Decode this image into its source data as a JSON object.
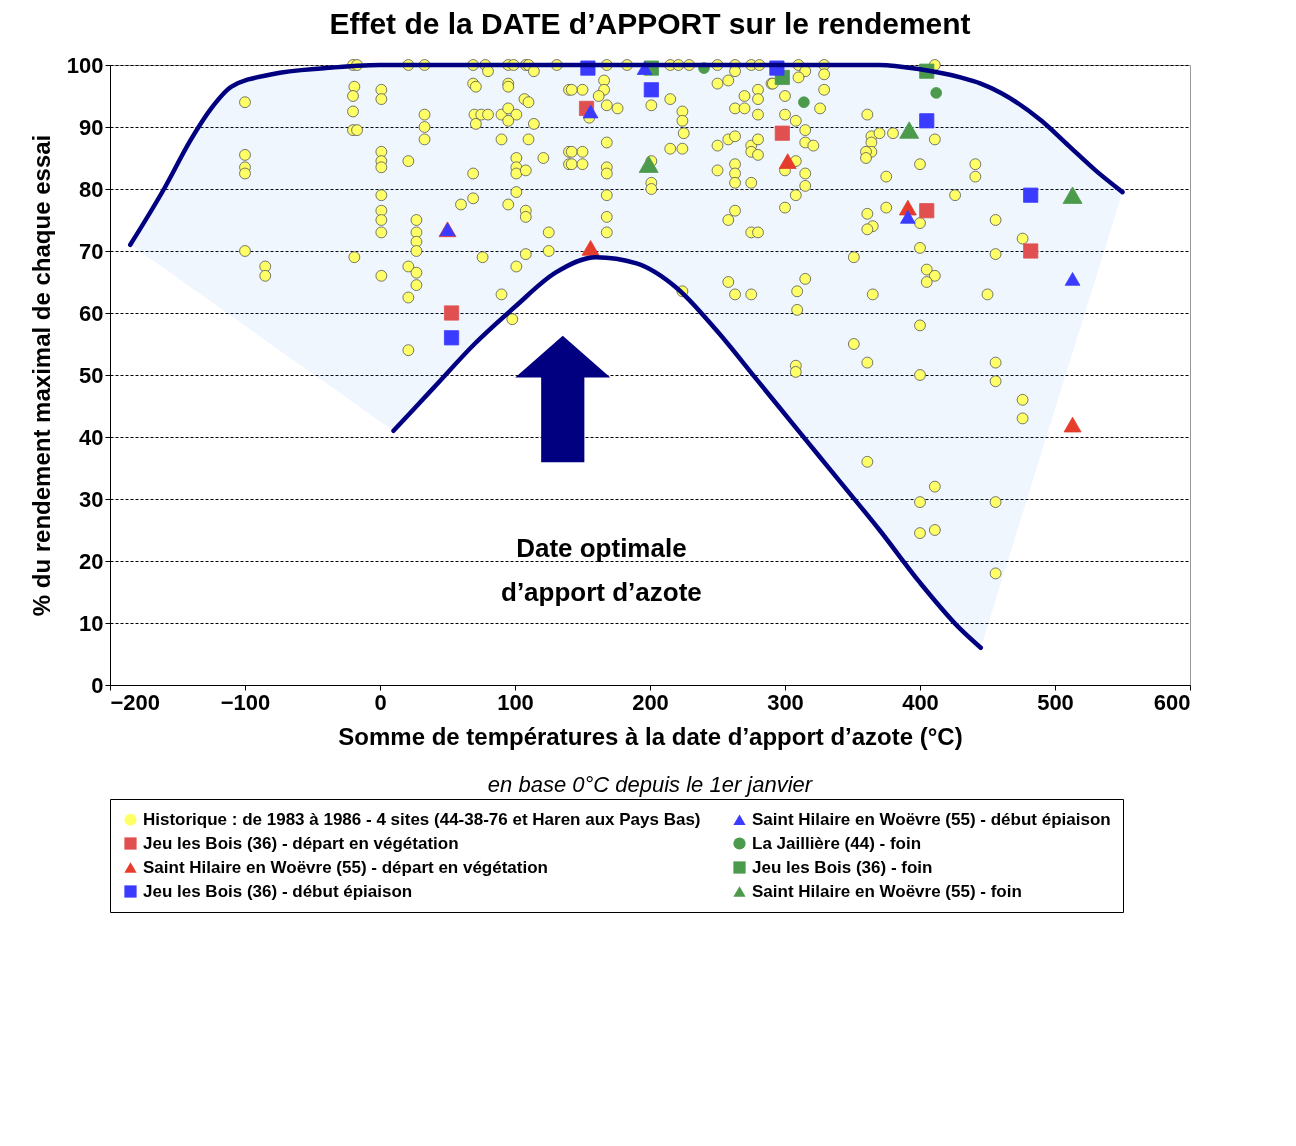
{
  "chart_data": {
    "type": "scatter",
    "title": "Effet de la DATE d’APPORT sur le rendement",
    "xlabel": "Somme de températures à la date d’apport d’azote (°C)",
    "ylabel": "% du rendement maximal de chaque essai",
    "annotations": [
      "Date optimale\nd’apport d’azote",
      "en base 0°C depuis le 1er janvier"
    ],
    "xlim": [
      -200,
      600
    ],
    "xticks": [
      -200,
      -100,
      0,
      100,
      200,
      300,
      400,
      500,
      600
    ],
    "ylim": [
      0,
      100
    ],
    "yticks": [
      0,
      10,
      20,
      30,
      40,
      50,
      60,
      70,
      80,
      90,
      100
    ],
    "grid": "y",
    "legend": "bottom",
    "series": [
      {
        "name": "Historique : de 1983 à 1986 - 4 sites (44-38-76 et Haren aux Pays Bas)",
        "color": "#ffff66",
        "marker": "circle",
        "x": [
          -100,
          -100,
          -100,
          -100,
          -100,
          -85,
          -85,
          -20,
          -17,
          -19,
          -20,
          -20,
          -20,
          -17,
          -19,
          21,
          33,
          69,
          78,
          80,
          95,
          99,
          108,
          110,
          114,
          131,
          1,
          1,
          33,
          33,
          33,
          69,
          71,
          95,
          95,
          107,
          110,
          140,
          70,
          75,
          80,
          71,
          90,
          95,
          101,
          95,
          114,
          90,
          110,
          1,
          1,
          1,
          21,
          69,
          101,
          101,
          101,
          108,
          121,
          140,
          140,
          1,
          69,
          60,
          101,
          95,
          108,
          108,
          1,
          1,
          1,
          27,
          27,
          27,
          27,
          125,
          125,
          76,
          108,
          101,
          1,
          21,
          27,
          27,
          21,
          90,
          98,
          21,
          168,
          183,
          215,
          221,
          229,
          250,
          263,
          263,
          275,
          281,
          290,
          150,
          142,
          166,
          166,
          162,
          168,
          176,
          155,
          201,
          215,
          224,
          224,
          225,
          224,
          215,
          250,
          258,
          270,
          263,
          270,
          280,
          280,
          280,
          168,
          142,
          150,
          142,
          150,
          168,
          168,
          201,
          201,
          201,
          250,
          258,
          263,
          275,
          275,
          280,
          280,
          250,
          263,
          263,
          263,
          275,
          168,
          168,
          168,
          258,
          263,
          275,
          280,
          224,
          258,
          263,
          275,
          291,
          310,
          315,
          310,
          329,
          329,
          329,
          300,
          300,
          308,
          326,
          315,
          315,
          321,
          300,
          308,
          315,
          315,
          308,
          300,
          361,
          364,
          364,
          364,
          360,
          360,
          370,
          380,
          375,
          375,
          361,
          365,
          361,
          411,
          411,
          400,
          441,
          441,
          426,
          400,
          400,
          405,
          411,
          405,
          351,
          315,
          309,
          309,
          365,
          400,
          351,
          361,
          308,
          308,
          400,
          361,
          411,
          400,
          400,
          411,
          456,
          476,
          456,
          450,
          456,
          456,
          476,
          476,
          456,
          456
        ],
        "values": [
          94,
          85.5,
          83.5,
          82.5,
          70,
          67.5,
          66,
          100,
          100,
          96.5,
          95,
          92.5,
          89.5,
          89.5,
          69,
          100,
          100,
          100,
          100,
          99,
          100,
          100,
          100,
          100,
          99,
          100,
          96,
          94.5,
          92,
          90,
          88,
          97,
          96.5,
          97,
          96.5,
          94.5,
          94,
          96,
          92,
          92,
          92,
          90.5,
          92,
          93,
          92,
          91,
          90.5,
          88,
          88,
          86,
          84.5,
          83.5,
          84.5,
          82.5,
          85,
          83.5,
          82.5,
          83,
          85,
          86,
          84,
          79,
          78.5,
          77.5,
          79.5,
          77.5,
          76.5,
          75.5,
          76.5,
          75,
          73,
          75,
          73,
          71.5,
          70,
          73,
          70,
          69,
          69.5,
          67.5,
          66,
          67.5,
          66.5,
          64.5,
          62.5,
          63,
          59,
          54,
          100,
          100,
          100,
          100,
          100,
          100,
          100,
          99,
          100,
          100,
          97,
          96,
          96,
          97.5,
          96,
          95,
          93.5,
          93,
          91.5,
          93.5,
          94.5,
          92.5,
          91,
          89,
          86.5,
          86.5,
          97,
          97.5,
          95,
          93,
          93,
          96,
          94.5,
          92,
          87.5,
          86,
          86,
          84,
          84,
          83.5,
          82.5,
          84.5,
          81,
          80,
          87,
          88,
          88.5,
          87,
          86,
          88,
          85.5,
          83,
          84,
          82.5,
          81,
          81,
          79,
          75.5,
          73,
          75,
          76.5,
          73,
          73,
          63.5,
          65,
          63,
          63,
          97,
          100,
          99,
          98,
          100,
          98.5,
          96,
          95,
          92,
          91,
          93,
          89.5,
          87.5,
          87,
          83,
          84.5,
          82.5,
          80.5,
          79,
          77,
          92,
          88.5,
          87.5,
          86,
          86,
          85,
          89,
          89,
          82,
          77,
          76,
          74,
          73.5,
          100,
          88,
          84,
          84,
          82,
          79,
          74.5,
          70.5,
          67,
          66,
          65,
          69,
          65.5,
          63.5,
          60.5,
          63,
          58,
          55,
          52,
          51.5,
          50.5,
          50,
          36,
          32,
          29.5,
          24.5,
          25,
          75,
          72,
          69.5,
          63,
          52,
          49,
          46,
          43,
          29.5,
          18
        ]
      },
      {
        "name": "Saint Hilaire en Woëvre (55) - début épiaison",
        "color": "#3b3bff",
        "marker": "triangle",
        "x": [
          50,
          156,
          196,
          391,
          513
        ],
        "values": [
          73.5,
          92.5,
          99.5,
          75.5,
          65.5
        ]
      },
      {
        "name": "Jeu les Bois (36) - départ en végétation",
        "color": "#e05050",
        "marker": "square",
        "x": [
          53,
          153,
          298,
          405,
          482
        ],
        "values": [
          60,
          93,
          89,
          76.5,
          70
        ]
      },
      {
        "name": "La Jaillière (44) - foin",
        "color": "#4c9a4c",
        "marker": "circle",
        "x": [
          240,
          314,
          412
        ],
        "values": [
          99.5,
          94,
          95.5
        ]
      },
      {
        "name": "Saint Hilaire en Woëvre (55) - départ en végétation",
        "color": "#e63c2c",
        "marker": "triangle",
        "x": [
          50,
          156,
          302,
          391,
          513
        ],
        "values": [
          73.5,
          70.5,
          84.5,
          77,
          42
        ]
      },
      {
        "name": "Jeu les Bois (36) - foin",
        "color": "#4c9a4c",
        "marker": "square",
        "x": [
          201,
          298,
          405
        ],
        "values": [
          99.5,
          98,
          99
        ]
      },
      {
        "name": "Jeu les Bois (36) - début épiaison",
        "color": "#3b3bff",
        "marker": "square",
        "x": [
          53,
          154,
          201,
          294,
          405,
          482
        ],
        "values": [
          56,
          99.5,
          96,
          99.5,
          91,
          79
        ]
      },
      {
        "name": "Saint Hilaire en Woëvre (55) - foin",
        "color": "#4c9a4c",
        "marker": "triangle",
        "x": [
          199,
          392,
          513
        ],
        "values": [
          84,
          89.5,
          79
        ]
      },
      {
        "type": "line",
        "color": "#000080",
        "x": [
          -185,
          -160,
          -140,
          -125,
          -110,
          -80,
          -40,
          0,
          10,
          40,
          70,
          100,
          130,
          160,
          190,
          220,
          250,
          280,
          310,
          340,
          370,
          400,
          430,
          445,
          460,
          490,
          510,
          530,
          550
        ],
        "values": [
          71,
          80,
          88,
          93,
          96.5,
          98.5,
          99.5,
          100,
          100,
          100,
          100,
          100,
          100,
          100,
          100,
          100,
          100,
          100,
          100,
          100,
          100,
          99.3,
          98,
          97,
          95.5,
          91,
          87,
          83,
          79.5
        ],
        "lower": [
          71,
          67.2,
          64.1,
          61.8,
          59.5,
          54.8,
          48.7,
          42.5,
          41,
          48,
          55,
          61,
          66.5,
          69,
          68,
          64,
          57,
          49,
          41,
          33,
          25,
          16.5,
          9,
          6,
          16.5,
          37.5,
          51.5,
          65.5,
          79.5
        ],
        "upper": [
          71,
          80,
          88,
          93,
          96.5,
          98.5,
          99.5,
          100,
          100,
          100,
          100,
          100,
          100,
          100,
          100,
          100,
          100,
          100,
          100,
          100,
          100,
          99.3,
          98,
          97,
          95.5,
          91,
          87,
          83,
          79.5
        ]
      },
      {
        "type": "line",
        "color": "#000080",
        "x": [
          10,
          40,
          70,
          100,
          130,
          160,
          190,
          220,
          250,
          280,
          310,
          340,
          370,
          400,
          430,
          445
        ],
        "values": [
          41,
          48,
          55,
          61,
          66.5,
          69,
          68,
          64,
          57,
          49,
          41,
          33,
          25,
          16.5,
          9,
          6
        ]
      }
    ]
  }
}
